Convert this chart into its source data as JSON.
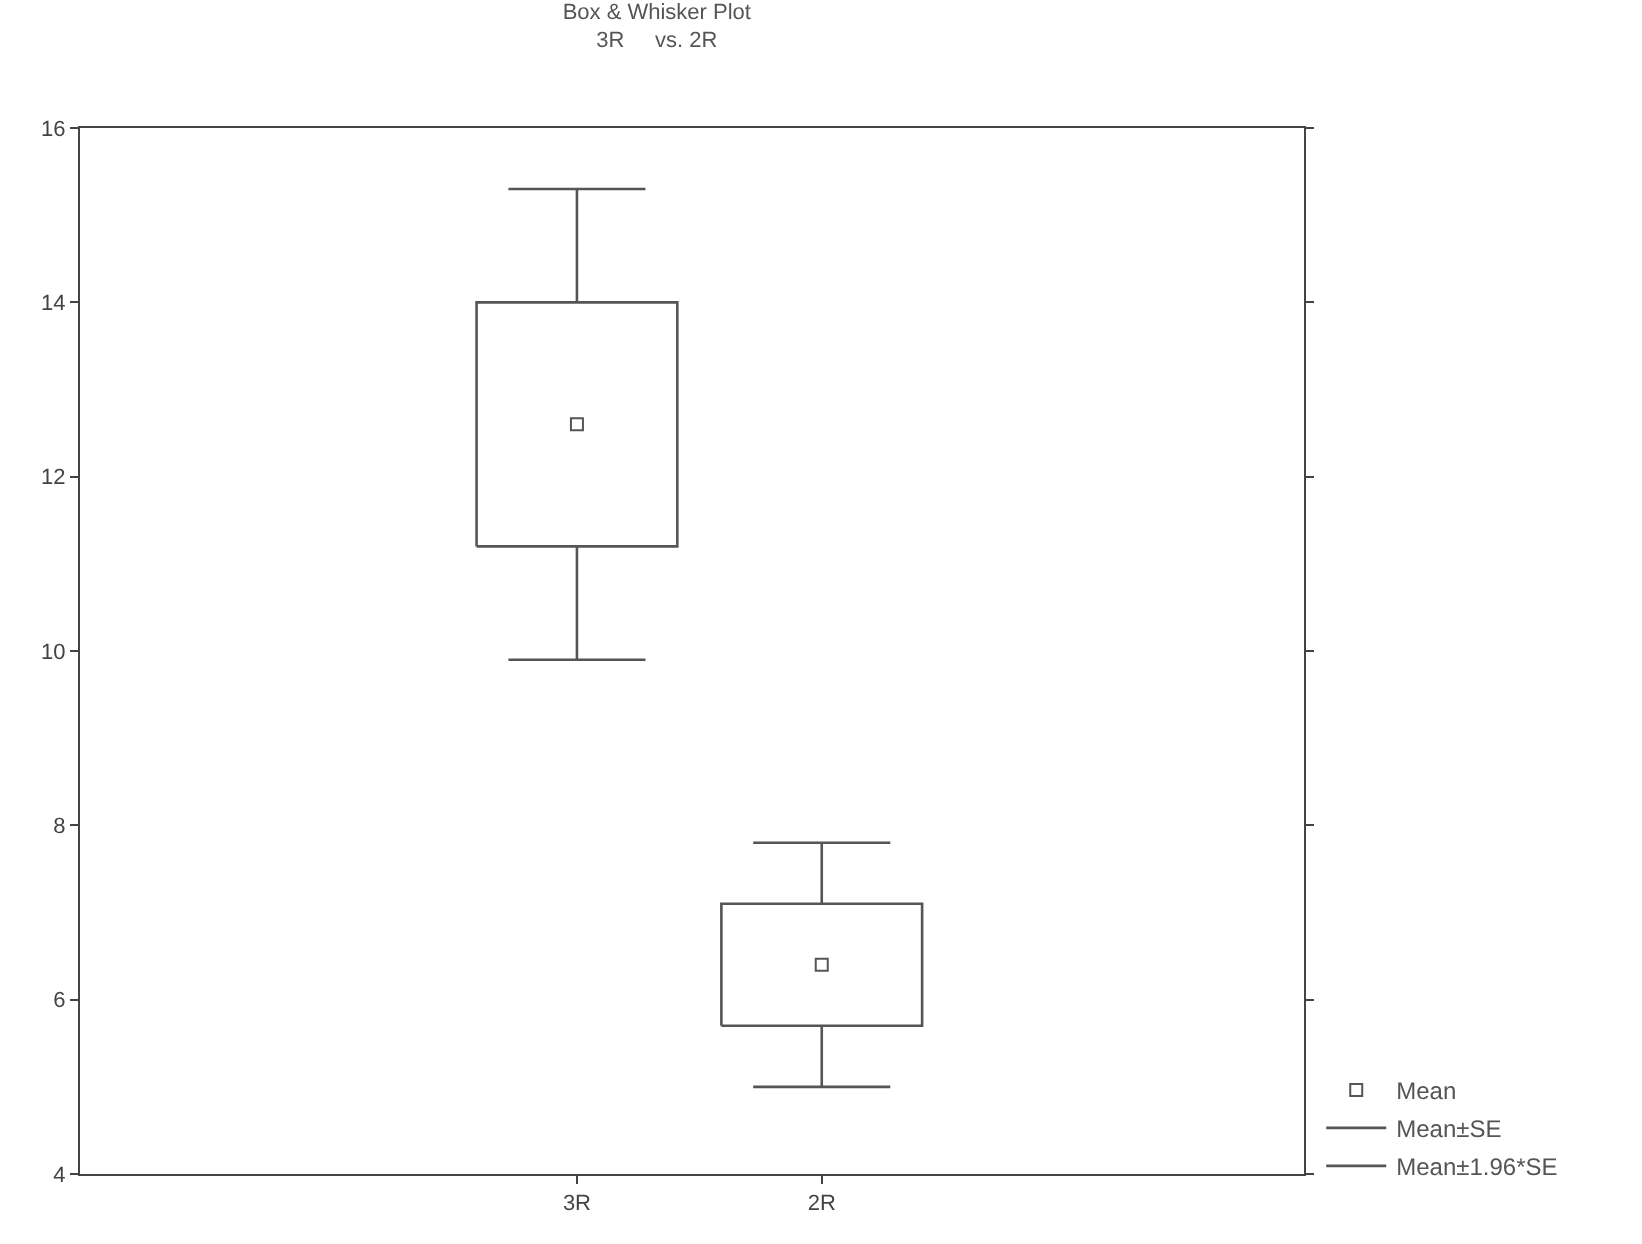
{
  "chart_data": {
    "type": "box",
    "title": "Box & Whisker Plot",
    "subtitle": "3R     vs. 2R",
    "categories": [
      "3R",
      "2R"
    ],
    "boxes": [
      {
        "low": 9.9,
        "q1": 11.2,
        "q3": 14.0,
        "high": 15.3
      },
      {
        "low": 5.0,
        "q1": 5.7,
        "q3": 7.1,
        "high": 7.8
      }
    ],
    "series": [
      {
        "name": "Mean",
        "type": "scatter",
        "color": "#555555",
        "x": [
          "3R",
          "2R"
        ],
        "values": [
          12.6,
          6.4
        ]
      }
    ],
    "annotations": [
      "Mean±SE",
      "Mean±1.96*SE"
    ],
    "ylim": [
      4,
      16
    ],
    "yticks": [
      4,
      6,
      8,
      10,
      12,
      14,
      16
    ],
    "grid": false,
    "legend": "bottom right",
    "marker": "square"
  }
}
